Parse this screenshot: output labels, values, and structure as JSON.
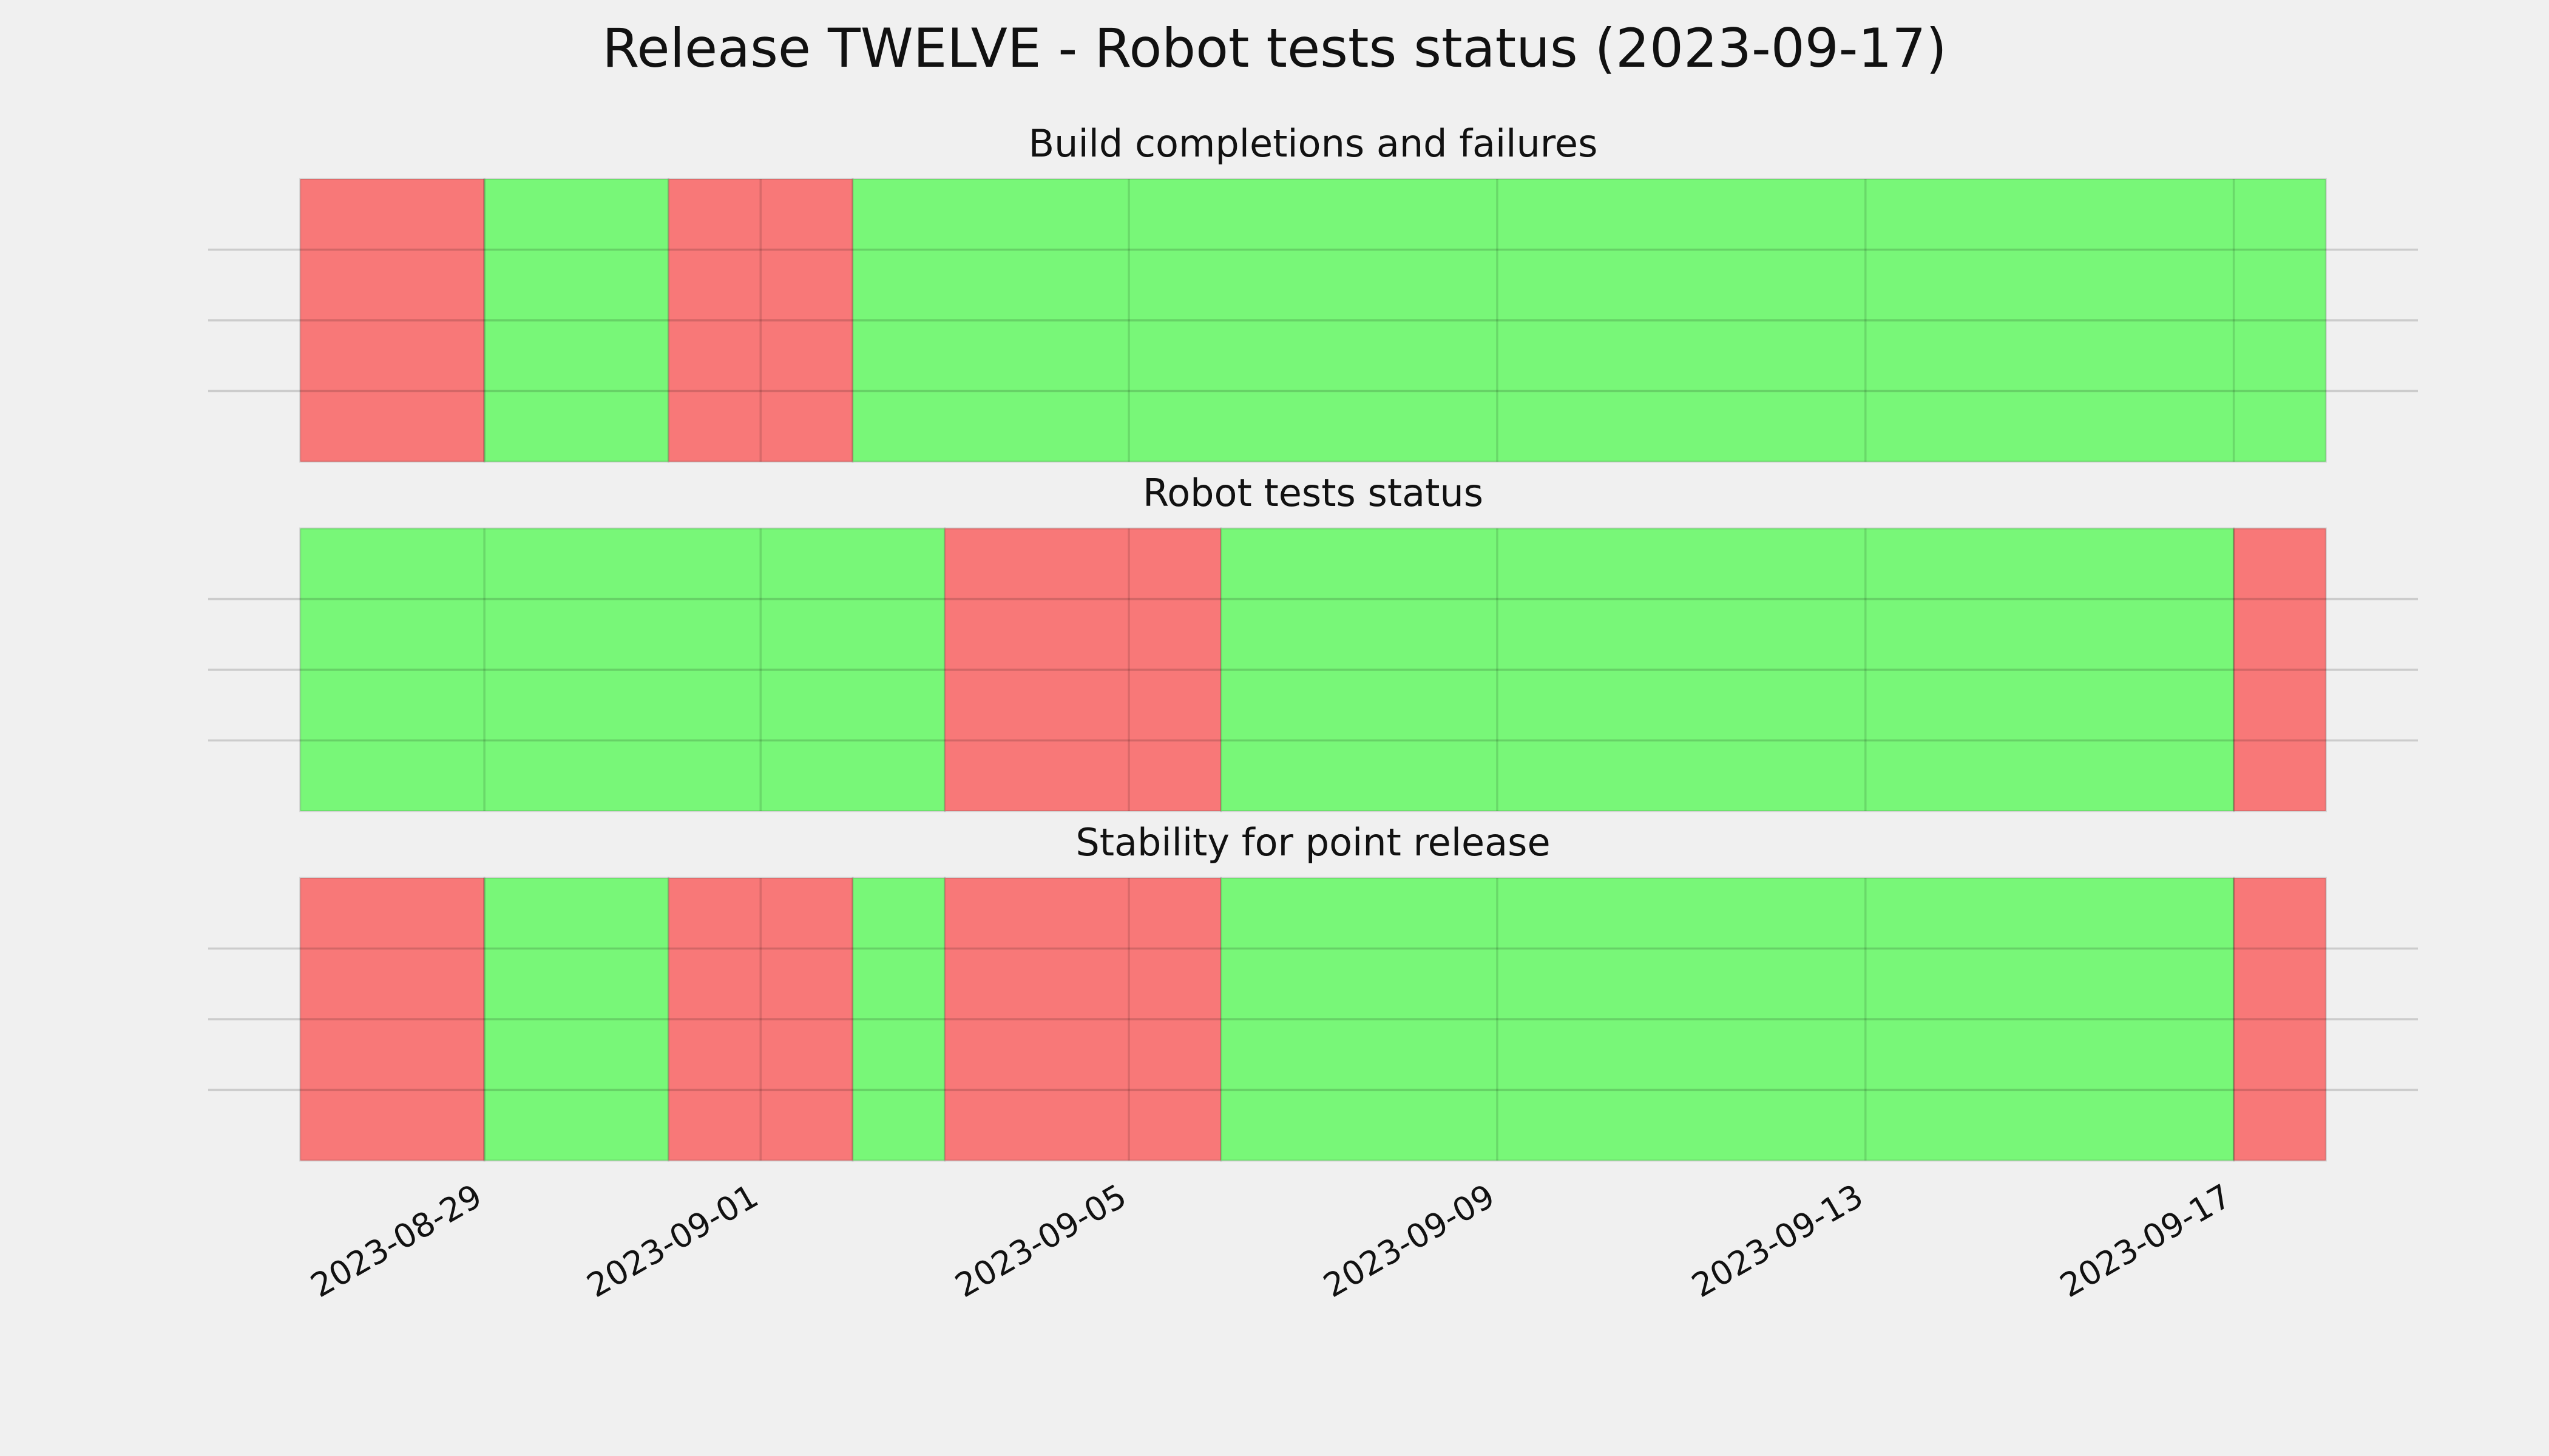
{
  "title": "Release TWELVE - Robot tests status (2023-09-17)",
  "chart_data": [
    {
      "type": "timeline",
      "title": "Build completions and failures",
      "x": [
        "2023-08-27",
        "2023-08-29",
        "2023-08-31",
        "2023-09-02",
        "2023-09-18"
      ],
      "colors": [
        "#f87878",
        "#78f778",
        "#f87878",
        "#78f778"
      ],
      "xlim": [
        "2023-08-26",
        "2023-09-19"
      ],
      "xticks": [
        "2023-08-29",
        "2023-09-01",
        "2023-09-05",
        "2023-09-09",
        "2023-09-13",
        "2023-09-17"
      ],
      "ylim": [
        0,
        1
      ],
      "yticks": [
        0.25,
        0.5,
        0.75
      ],
      "grid": true
    },
    {
      "type": "timeline",
      "title": "Robot tests status",
      "x": [
        "2023-08-27",
        "2023-09-03",
        "2023-09-06",
        "2023-09-17",
        "2023-09-18"
      ],
      "colors": [
        "#78f778",
        "#f87878",
        "#78f778",
        "#f87878"
      ],
      "xlim": [
        "2023-08-26",
        "2023-09-19"
      ],
      "xticks": [
        "2023-08-29",
        "2023-09-01",
        "2023-09-05",
        "2023-09-09",
        "2023-09-13",
        "2023-09-17"
      ],
      "ylim": [
        0,
        1
      ],
      "yticks": [
        0.25,
        0.5,
        0.75
      ],
      "grid": true
    },
    {
      "type": "timeline",
      "title": "Stability for point release",
      "x": [
        "2023-08-27",
        "2023-08-29",
        "2023-08-31",
        "2023-09-02",
        "2023-09-03",
        "2023-09-06",
        "2023-09-17",
        "2023-09-18"
      ],
      "colors": [
        "#f87878",
        "#78f778",
        "#f87878",
        "#78f778",
        "#f87878",
        "#78f778",
        "#f87878"
      ],
      "xlim": [
        "2023-08-26",
        "2023-09-19"
      ],
      "xticks": [
        "2023-08-29",
        "2023-09-01",
        "2023-09-05",
        "2023-09-09",
        "2023-09-13",
        "2023-09-17"
      ],
      "ylim": [
        0,
        1
      ],
      "yticks": [
        0.25,
        0.5,
        0.75
      ],
      "grid": true,
      "show_xtick_labels": true
    }
  ]
}
